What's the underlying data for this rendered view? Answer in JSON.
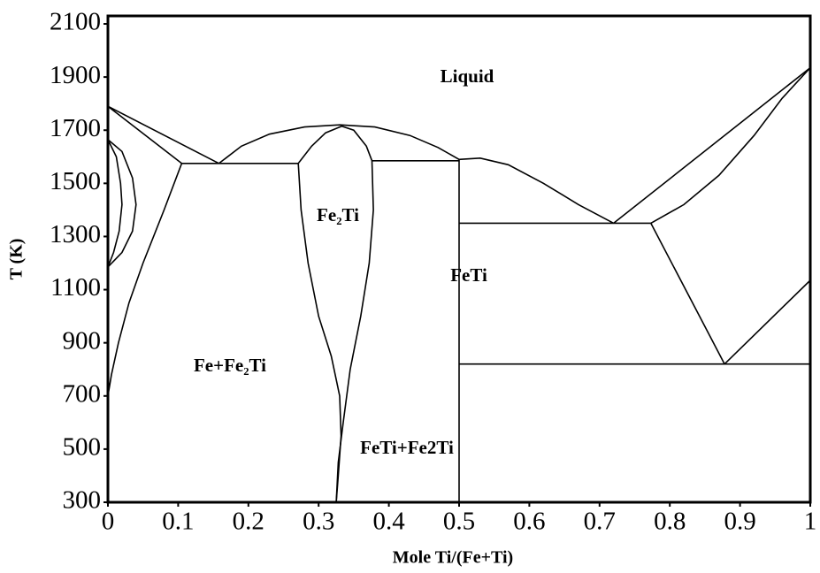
{
  "chart_data": {
    "type": "line",
    "color": "#000000",
    "x_label": "Mole Ti/(Fe+Ti)",
    "y_label": "T (K)",
    "xlim": [
      0,
      1
    ],
    "ylim": [
      300,
      2130
    ],
    "xticks": [
      0,
      0.1,
      0.2,
      0.3,
      0.4,
      0.5,
      0.6,
      0.7,
      0.8,
      0.9,
      1
    ],
    "yticks": [
      300,
      500,
      700,
      900,
      1100,
      1300,
      1500,
      1700,
      1900,
      2100
    ],
    "grid": false,
    "annotations": [
      "Liquid",
      "Fe₂Ti",
      "FeTi",
      "Fe+Fe₂Ti",
      "FeTi+Fe2Ti"
    ],
    "series": [
      {
        "x": [
          0,
          0.158
        ],
        "values": [
          1790,
          1575
        ]
      },
      {
        "x": [
          0,
          0.105
        ],
        "values": [
          1790,
          1575
        ]
      },
      {
        "x": [
          0,
          0.02,
          0.035,
          0.04,
          0.035,
          0.02,
          0
        ],
        "values": [
          1665,
          1620,
          1520,
          1420,
          1320,
          1240,
          1185
        ]
      },
      {
        "x": [
          0,
          0.012,
          0.018,
          0.02,
          0.016,
          0.008,
          0
        ],
        "values": [
          1665,
          1600,
          1500,
          1420,
          1320,
          1240,
          1185
        ]
      },
      {
        "x": [
          0.105,
          0.08,
          0.05,
          0.03,
          0.015,
          0.005,
          0
        ],
        "values": [
          1575,
          1400,
          1200,
          1050,
          900,
          780,
          700
        ]
      },
      {
        "x": [
          0.105,
          0.271
        ],
        "values": [
          1575,
          1575
        ]
      },
      {
        "x": [
          0.158,
          0.19,
          0.23,
          0.28,
          0.33,
          0.38,
          0.43,
          0.47,
          0.5
        ],
        "values": [
          1575,
          1640,
          1685,
          1712,
          1720,
          1712,
          1680,
          1635,
          1590
        ]
      },
      {
        "x": [
          0.271,
          0.29,
          0.31,
          0.333,
          0.35,
          0.368,
          0.376
        ],
        "values": [
          1575,
          1640,
          1690,
          1715,
          1700,
          1640,
          1585
        ]
      },
      {
        "x": [
          0.271,
          0.275,
          0.285,
          0.3,
          0.318,
          0.33,
          0.332,
          0.328,
          0.325
        ],
        "values": [
          1575,
          1400,
          1200,
          1000,
          850,
          700,
          550,
          400,
          300
        ]
      },
      {
        "x": [
          0.376,
          0.378,
          0.372,
          0.36,
          0.345,
          0.335,
          0.328,
          0.325
        ],
        "values": [
          1585,
          1400,
          1200,
          1000,
          800,
          600,
          450,
          300
        ]
      },
      {
        "x": [
          0.376,
          0.5
        ],
        "values": [
          1585,
          1585
        ]
      },
      {
        "x": [
          0.5,
          0.5
        ],
        "values": [
          1590,
          300
        ]
      },
      {
        "x": [
          0.5,
          0.53,
          0.57,
          0.62,
          0.67,
          0.72
        ],
        "values": [
          1590,
          1595,
          1570,
          1500,
          1420,
          1350
        ]
      },
      {
        "x": [
          0.5,
          0.773
        ],
        "values": [
          1350,
          1350
        ]
      },
      {
        "x": [
          0.72,
          1
        ],
        "values": [
          1350,
          1935
        ]
      },
      {
        "x": [
          0.773,
          0.82,
          0.87,
          0.92,
          0.96,
          1
        ],
        "values": [
          1350,
          1420,
          1530,
          1680,
          1820,
          1935
        ]
      },
      {
        "x": [
          0.773,
          0.878
        ],
        "values": [
          1350,
          820
        ]
      },
      {
        "x": [
          0.878,
          1
        ],
        "values": [
          820,
          1135
        ]
      },
      {
        "x": [
          0.5,
          1
        ],
        "values": [
          820,
          820
        ]
      }
    ]
  }
}
